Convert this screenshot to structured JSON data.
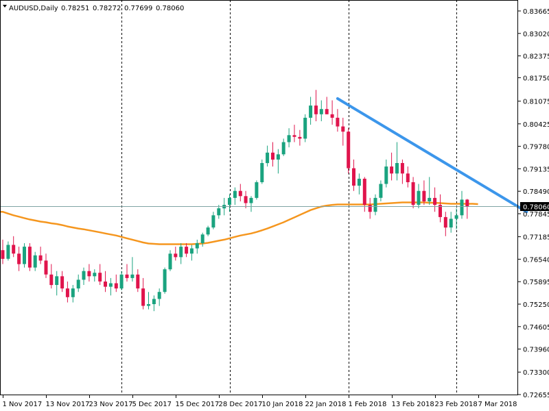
{
  "header": {
    "symbol": "AUDUSD,Daily",
    "open": "0.78251",
    "high": "0.78272",
    "low": "0.77699",
    "close": "0.78060"
  },
  "chart_data": {
    "type": "candlestick",
    "symbol": "AUDUSD",
    "timeframe": "Daily",
    "y_ticks": [
      "0.83665",
      "0.83020",
      "0.82375",
      "0.81750",
      "0.81075",
      "0.80425",
      "0.79780",
      "0.79135",
      "0.78490",
      "0.77845",
      "0.77185",
      "0.76540",
      "0.75895",
      "0.75250",
      "0.74605",
      "0.73960",
      "0.73300",
      "0.72655"
    ],
    "ylim": [
      0.72655,
      0.83665
    ],
    "x_labels": [
      {
        "label": "1 Nov 2017",
        "index": 0
      },
      {
        "label": "13 Nov 2017",
        "index": 8
      },
      {
        "label": "23 Nov 2017",
        "index": 16
      },
      {
        "label": "5 Dec 2017",
        "index": 24
      },
      {
        "label": "15 Dec 2017",
        "index": 32
      },
      {
        "label": "28 Dec 2017",
        "index": 40
      },
      {
        "label": "10 Jan 2018",
        "index": 48
      },
      {
        "label": "22 Jan 2018",
        "index": 56
      },
      {
        "label": "1 Feb 2018",
        "index": 64
      },
      {
        "label": "13 Feb 2018",
        "index": 72
      },
      {
        "label": "23 Feb 2018",
        "index": 80
      },
      {
        "label": "7 Mar 2018",
        "index": 88
      }
    ],
    "period_separators": [
      22,
      42,
      64,
      84
    ],
    "candles": [
      [
        0.768,
        0.771,
        0.764,
        0.7655
      ],
      [
        0.7655,
        0.7705,
        0.765,
        0.7695
      ],
      [
        0.7695,
        0.772,
        0.766,
        0.767
      ],
      [
        0.767,
        0.769,
        0.762,
        0.764
      ],
      [
        0.764,
        0.77,
        0.763,
        0.769
      ],
      [
        0.769,
        0.77,
        0.762,
        0.763
      ],
      [
        0.763,
        0.7675,
        0.762,
        0.7665
      ],
      [
        0.7665,
        0.769,
        0.764,
        0.765
      ],
      [
        0.765,
        0.767,
        0.76,
        0.761
      ],
      [
        0.761,
        0.764,
        0.757,
        0.758
      ],
      [
        0.758,
        0.762,
        0.755,
        0.7605
      ],
      [
        0.7605,
        0.762,
        0.756,
        0.757
      ],
      [
        0.757,
        0.759,
        0.753,
        0.7545
      ],
      [
        0.7545,
        0.758,
        0.753,
        0.757
      ],
      [
        0.757,
        0.761,
        0.756,
        0.7595
      ],
      [
        0.7595,
        0.763,
        0.758,
        0.762
      ],
      [
        0.762,
        0.764,
        0.759,
        0.7605
      ],
      [
        0.7605,
        0.7625,
        0.759,
        0.7615
      ],
      [
        0.7615,
        0.764,
        0.758,
        0.759
      ],
      [
        0.759,
        0.762,
        0.756,
        0.7575
      ],
      [
        0.7575,
        0.76,
        0.755,
        0.7585
      ],
      [
        0.7585,
        0.761,
        0.756,
        0.757
      ],
      [
        0.757,
        0.762,
        0.7565,
        0.761
      ],
      [
        0.761,
        0.764,
        0.759,
        0.76
      ],
      [
        0.76,
        0.766,
        0.759,
        0.761
      ],
      [
        0.761,
        0.7625,
        0.756,
        0.757
      ],
      [
        0.757,
        0.76,
        0.751,
        0.752
      ],
      [
        0.752,
        0.756,
        0.751,
        0.7525
      ],
      [
        0.7525,
        0.755,
        0.7505,
        0.754
      ],
      [
        0.754,
        0.757,
        0.752,
        0.756
      ],
      [
        0.756,
        0.763,
        0.7555,
        0.7625
      ],
      [
        0.7625,
        0.768,
        0.762,
        0.767
      ],
      [
        0.767,
        0.769,
        0.765,
        0.766
      ],
      [
        0.766,
        0.77,
        0.764,
        0.769
      ],
      [
        0.769,
        0.77,
        0.766,
        0.767
      ],
      [
        0.767,
        0.7695,
        0.765,
        0.7685
      ],
      [
        0.7685,
        0.771,
        0.767,
        0.77
      ],
      [
        0.77,
        0.773,
        0.769,
        0.7725
      ],
      [
        0.7725,
        0.775,
        0.772,
        0.7745
      ],
      [
        0.7745,
        0.779,
        0.774,
        0.778
      ],
      [
        0.778,
        0.781,
        0.777,
        0.78
      ],
      [
        0.78,
        0.783,
        0.778,
        0.781
      ],
      [
        0.781,
        0.784,
        0.779,
        0.783
      ],
      [
        0.783,
        0.786,
        0.781,
        0.785
      ],
      [
        0.785,
        0.787,
        0.782,
        0.7835
      ],
      [
        0.7835,
        0.785,
        0.78,
        0.7815
      ],
      [
        0.7815,
        0.7835,
        0.779,
        0.783
      ],
      [
        0.783,
        0.788,
        0.7825,
        0.7875
      ],
      [
        0.7875,
        0.794,
        0.787,
        0.793
      ],
      [
        0.793,
        0.798,
        0.792,
        0.796
      ],
      [
        0.796,
        0.799,
        0.792,
        0.794
      ],
      [
        0.794,
        0.797,
        0.79,
        0.7955
      ],
      [
        0.7955,
        0.8,
        0.795,
        0.799
      ],
      [
        0.799,
        0.803,
        0.7975,
        0.801
      ],
      [
        0.801,
        0.804,
        0.799,
        0.8005
      ],
      [
        0.8005,
        0.8025,
        0.798,
        0.8
      ],
      [
        0.8,
        0.807,
        0.799,
        0.806
      ],
      [
        0.806,
        0.812,
        0.804,
        0.8095
      ],
      [
        0.8095,
        0.814,
        0.805,
        0.807
      ],
      [
        0.807,
        0.811,
        0.805,
        0.8085
      ],
      [
        0.8085,
        0.812,
        0.807,
        0.807
      ],
      [
        0.807,
        0.811,
        0.804,
        0.806
      ],
      [
        0.806,
        0.8085,
        0.802,
        0.8035
      ],
      [
        0.8035,
        0.806,
        0.798,
        0.802
      ],
      [
        0.802,
        0.803,
        0.79,
        0.7915
      ],
      [
        0.7915,
        0.794,
        0.785,
        0.7865
      ],
      [
        0.7865,
        0.79,
        0.784,
        0.7885
      ],
      [
        0.7885,
        0.789,
        0.779,
        0.781
      ],
      [
        0.781,
        0.783,
        0.777,
        0.779
      ],
      [
        0.779,
        0.784,
        0.778,
        0.783
      ],
      [
        0.783,
        0.788,
        0.782,
        0.787
      ],
      [
        0.787,
        0.794,
        0.786,
        0.792
      ],
      [
        0.792,
        0.796,
        0.788,
        0.79
      ],
      [
        0.79,
        0.799,
        0.788,
        0.793
      ],
      [
        0.793,
        0.794,
        0.787,
        0.79
      ],
      [
        0.79,
        0.792,
        0.786,
        0.7875
      ],
      [
        0.7875,
        0.789,
        0.78,
        0.781
      ],
      [
        0.781,
        0.787,
        0.78,
        0.785
      ],
      [
        0.785,
        0.788,
        0.781,
        0.782
      ],
      [
        0.782,
        0.789,
        0.781,
        0.783
      ],
      [
        0.783,
        0.786,
        0.779,
        0.781
      ],
      [
        0.781,
        0.784,
        0.776,
        0.7775
      ],
      [
        0.7775,
        0.779,
        0.772,
        0.7745
      ],
      [
        0.7745,
        0.779,
        0.773,
        0.777
      ],
      [
        0.777,
        0.78,
        0.774,
        0.778
      ],
      [
        0.778,
        0.785,
        0.777,
        0.7825
      ],
      [
        0.7825,
        0.7827,
        0.777,
        0.7806
      ]
    ],
    "moving_average": {
      "color": "#f5961e",
      "values": [
        0.779,
        0.7785,
        0.778,
        0.7776,
        0.7772,
        0.7768,
        0.7765,
        0.7762,
        0.776,
        0.7757,
        0.7755,
        0.7752,
        0.7748,
        0.7745,
        0.7742,
        0.774,
        0.7737,
        0.7734,
        0.7731,
        0.7728,
        0.7725,
        0.7722,
        0.7718,
        0.7714,
        0.771,
        0.7706,
        0.7702,
        0.7699,
        0.7698,
        0.7697,
        0.7697,
        0.7697,
        0.7697,
        0.7697,
        0.7697,
        0.7697,
        0.7698,
        0.7699,
        0.7701,
        0.7704,
        0.7707,
        0.771,
        0.7714,
        0.7718,
        0.7722,
        0.7725,
        0.7728,
        0.7732,
        0.7737,
        0.7742,
        0.7748,
        0.7754,
        0.776,
        0.7767,
        0.7774,
        0.7781,
        0.7788,
        0.7795,
        0.78,
        0.7805,
        0.7808,
        0.781,
        0.7811,
        0.7811,
        0.7811,
        0.7811,
        0.7811,
        0.7811,
        0.7811,
        0.7812,
        0.7813,
        0.7814,
        0.7815,
        0.7816,
        0.7817,
        0.7817,
        0.7817,
        0.7817,
        0.7817,
        0.7816,
        0.7816,
        0.7815,
        0.7814,
        0.7813,
        0.7813,
        0.7813,
        0.7813,
        0.7813,
        0.7812
      ]
    },
    "trendline": {
      "color": "#3c96eb",
      "from": {
        "index": 62,
        "price": 0.8115
      },
      "to": {
        "index": 97,
        "price": 0.779
      }
    },
    "current_price": {
      "label": "0.78060",
      "value": 0.7806
    },
    "colors": {
      "bull": "#1aa37f",
      "bear": "#e0144c",
      "grid": "#000000",
      "price_line": "#7fa3a3",
      "price_label_bg": "#000000",
      "price_label_text": "#ffffff"
    }
  }
}
